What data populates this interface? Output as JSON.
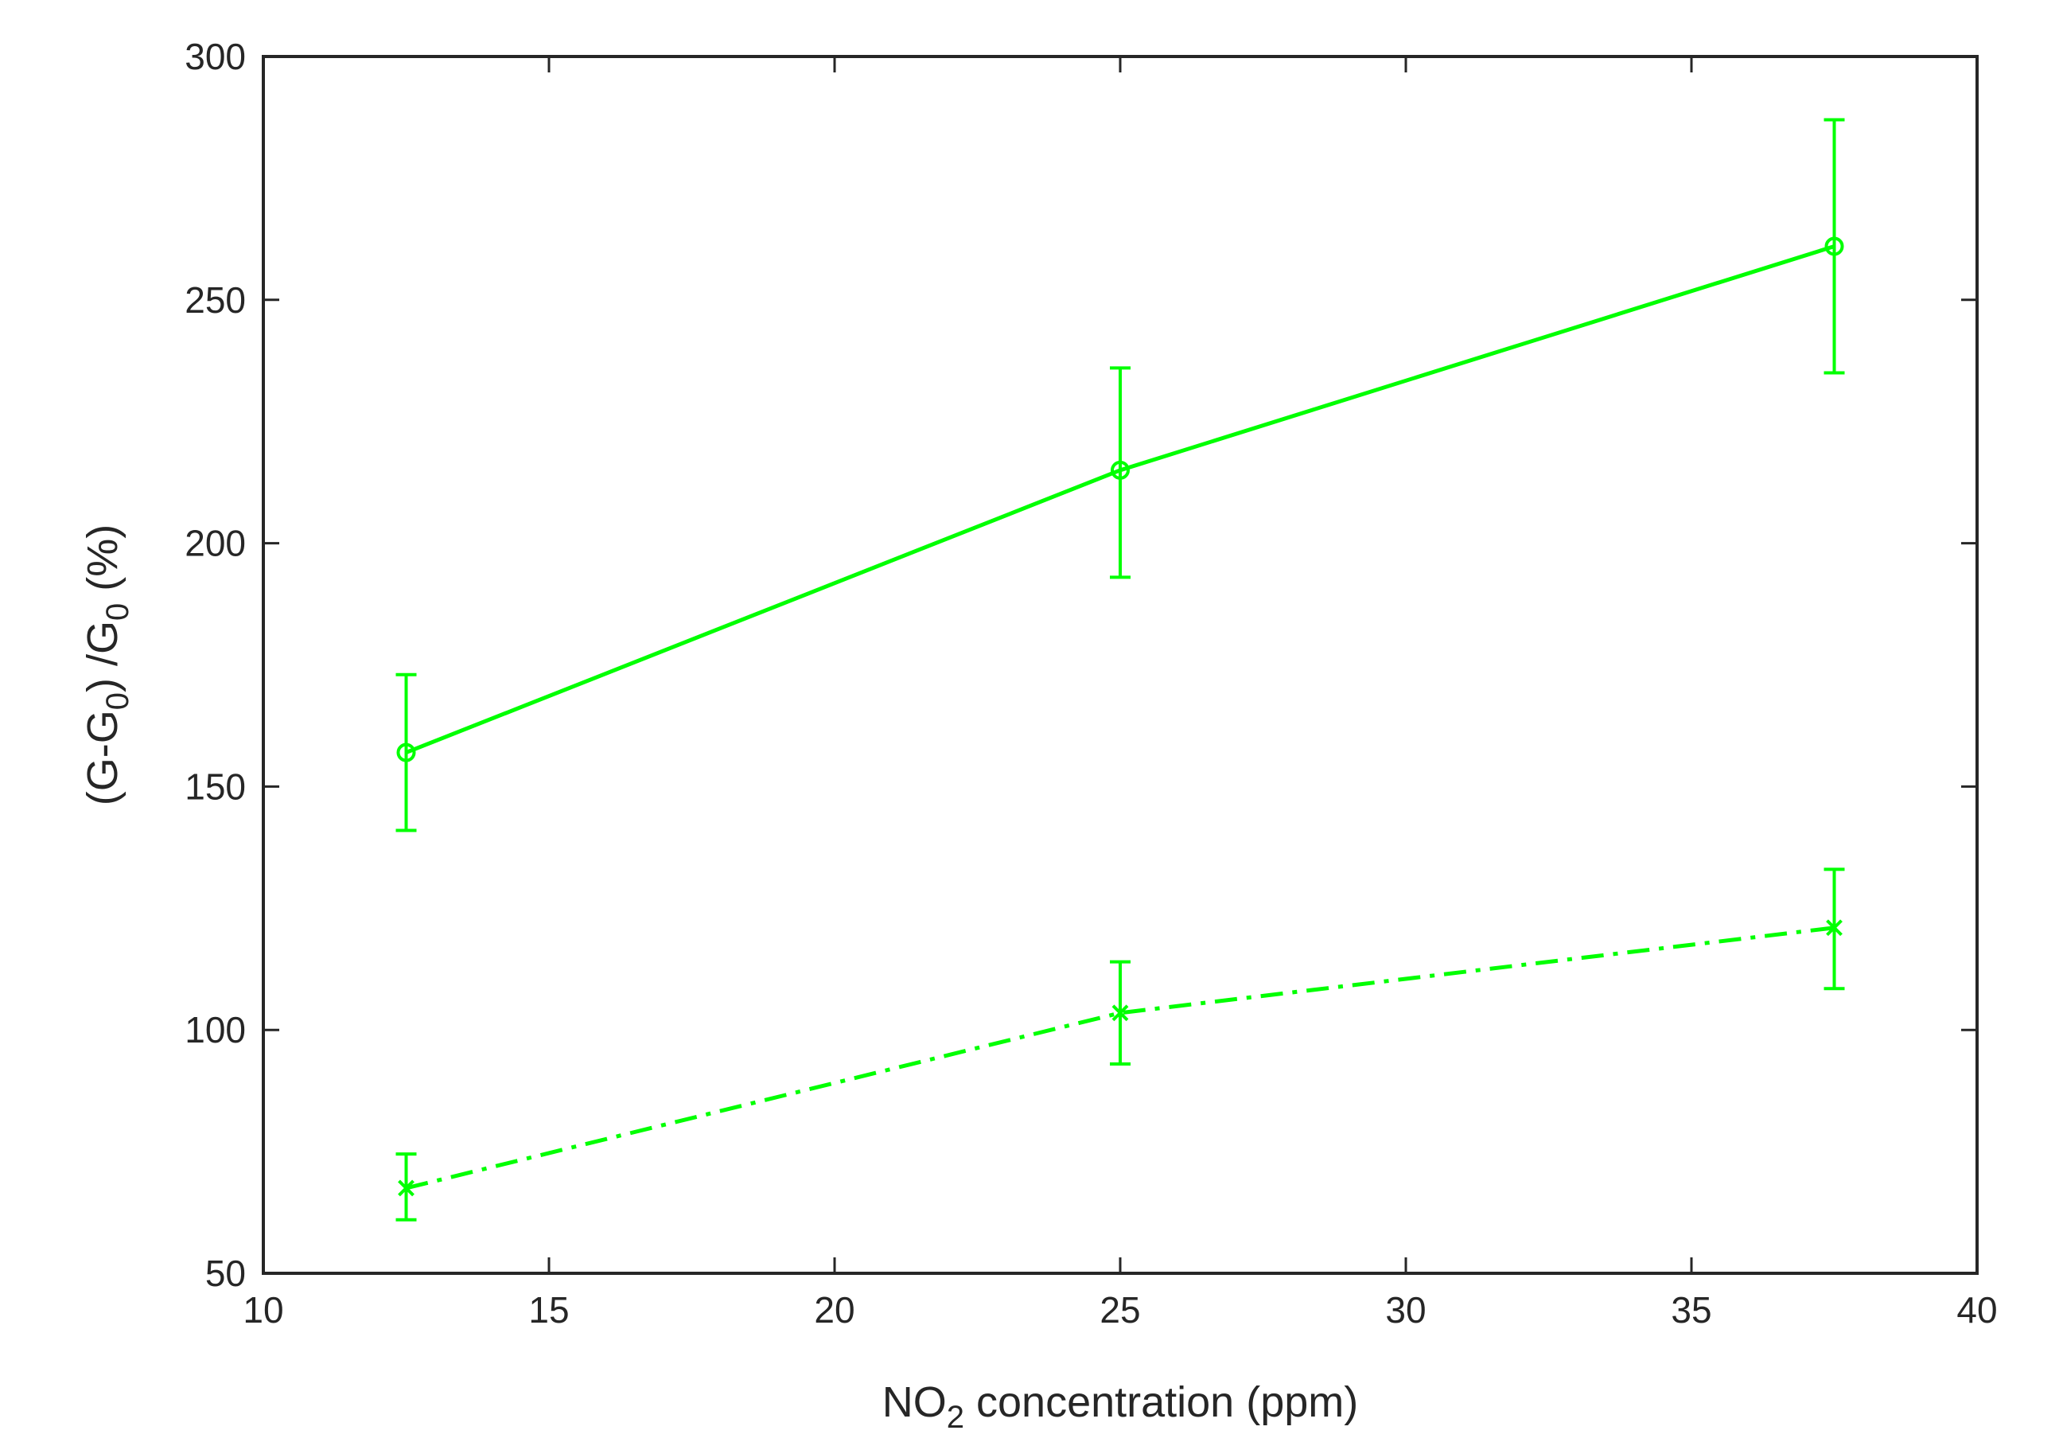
{
  "chart_data": {
    "type": "line",
    "xlabel": {
      "pre": "NO",
      "sub": "2",
      "post": " concentration (ppm)"
    },
    "ylabel": {
      "p1": "(G-G",
      "s1": "0",
      "p2": ") /G",
      "s2": "0",
      "p3": " (%)"
    },
    "xlim": [
      10,
      40
    ],
    "ylim": [
      50,
      300
    ],
    "xticks": [
      10,
      15,
      20,
      25,
      30,
      35,
      40
    ],
    "yticks": [
      50,
      100,
      150,
      200,
      250,
      300
    ],
    "grid": false,
    "legend": "none",
    "series": [
      {
        "marker": "circle",
        "line_style": "solid",
        "color": "#00ff00",
        "x": [
          12.5,
          25,
          37.5
        ],
        "y": [
          157,
          215,
          261
        ],
        "err_low": [
          141,
          193,
          235
        ],
        "err_high": [
          173,
          236,
          287
        ]
      },
      {
        "marker": "x",
        "line_style": "dash-dot",
        "color": "#00ff00",
        "x": [
          12.5,
          25,
          37.5
        ],
        "y": [
          67.5,
          103.5,
          121
        ],
        "err_low": [
          61,
          93,
          108.5
        ],
        "err_high": [
          74.5,
          114,
          133
        ]
      }
    ]
  }
}
